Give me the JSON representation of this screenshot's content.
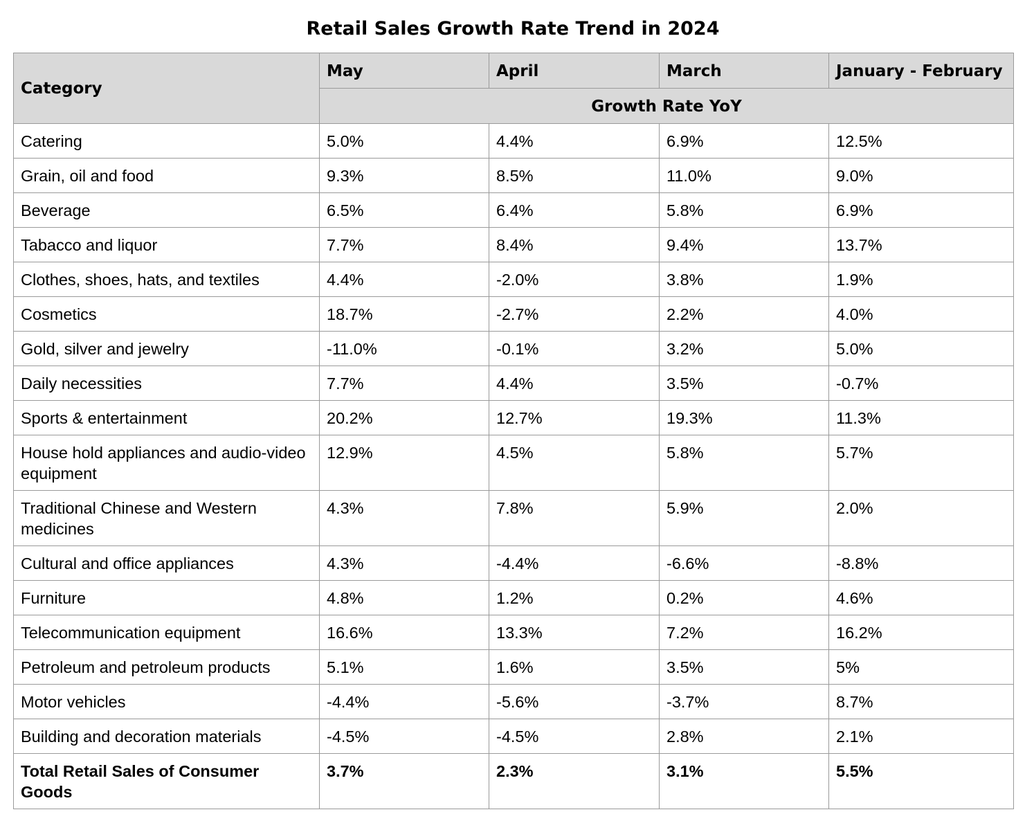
{
  "chart_data": {
    "type": "table",
    "title": "Retail Sales Growth Rate Trend in 2024",
    "category_header": "Category",
    "columns": [
      "May",
      "April",
      "March",
      "January - February"
    ],
    "subheader": "Growth Rate YoY",
    "rows": [
      {
        "category": "Catering",
        "values": [
          "5.0%",
          "4.4%",
          "6.9%",
          "12.5%"
        ]
      },
      {
        "category": "Grain, oil and food",
        "values": [
          "9.3%",
          "8.5%",
          "11.0%",
          "9.0%"
        ]
      },
      {
        "category": "Beverage",
        "values": [
          "6.5%",
          "6.4%",
          "5.8%",
          "6.9%"
        ]
      },
      {
        "category": "Tabacco and liquor",
        "values": [
          "7.7%",
          "8.4%",
          "9.4%",
          "13.7%"
        ]
      },
      {
        "category": "Clothes, shoes, hats, and textiles",
        "values": [
          "4.4%",
          "-2.0%",
          "3.8%",
          "1.9%"
        ]
      },
      {
        "category": "Cosmetics",
        "values": [
          "18.7%",
          "-2.7%",
          "2.2%",
          "4.0%"
        ]
      },
      {
        "category": "Gold, silver and jewelry",
        "values": [
          "-11.0%",
          "-0.1%",
          "3.2%",
          "5.0%"
        ]
      },
      {
        "category": "Daily necessities",
        "values": [
          "7.7%",
          "4.4%",
          "3.5%",
          "-0.7%"
        ]
      },
      {
        "category": "Sports & entertainment",
        "values": [
          "20.2%",
          "12.7%",
          "19.3%",
          "11.3%"
        ]
      },
      {
        "category": "House hold appliances and audio-video equipment",
        "values": [
          "12.9%",
          "4.5%",
          "5.8%",
          "5.7%"
        ]
      },
      {
        "category": "Traditional Chinese and Western medicines",
        "values": [
          "4.3%",
          "7.8%",
          "5.9%",
          "2.0%"
        ]
      },
      {
        "category": "Cultural and office appliances",
        "values": [
          "4.3%",
          "-4.4%",
          "-6.6%",
          "-8.8%"
        ]
      },
      {
        "category": "Furniture",
        "values": [
          "4.8%",
          "1.2%",
          "0.2%",
          "4.6%"
        ]
      },
      {
        "category": "Telecommunication equipment",
        "values": [
          "16.6%",
          "13.3%",
          "7.2%",
          "16.2%"
        ]
      },
      {
        "category": "Petroleum and petroleum products",
        "values": [
          "5.1%",
          "1.6%",
          "3.5%",
          "5%"
        ]
      },
      {
        "category": "Motor vehicles",
        "values": [
          "-4.4%",
          "-5.6%",
          "-3.7%",
          "8.7%"
        ]
      },
      {
        "category": "Building and decoration materials",
        "values": [
          "-4.5%",
          "-4.5%",
          "2.8%",
          "2.1%"
        ]
      },
      {
        "category": "Total Retail Sales of Consumer Goods",
        "values": [
          "3.7%",
          "2.3%",
          "3.1%",
          "5.5%"
        ],
        "bold": true
      }
    ]
  }
}
